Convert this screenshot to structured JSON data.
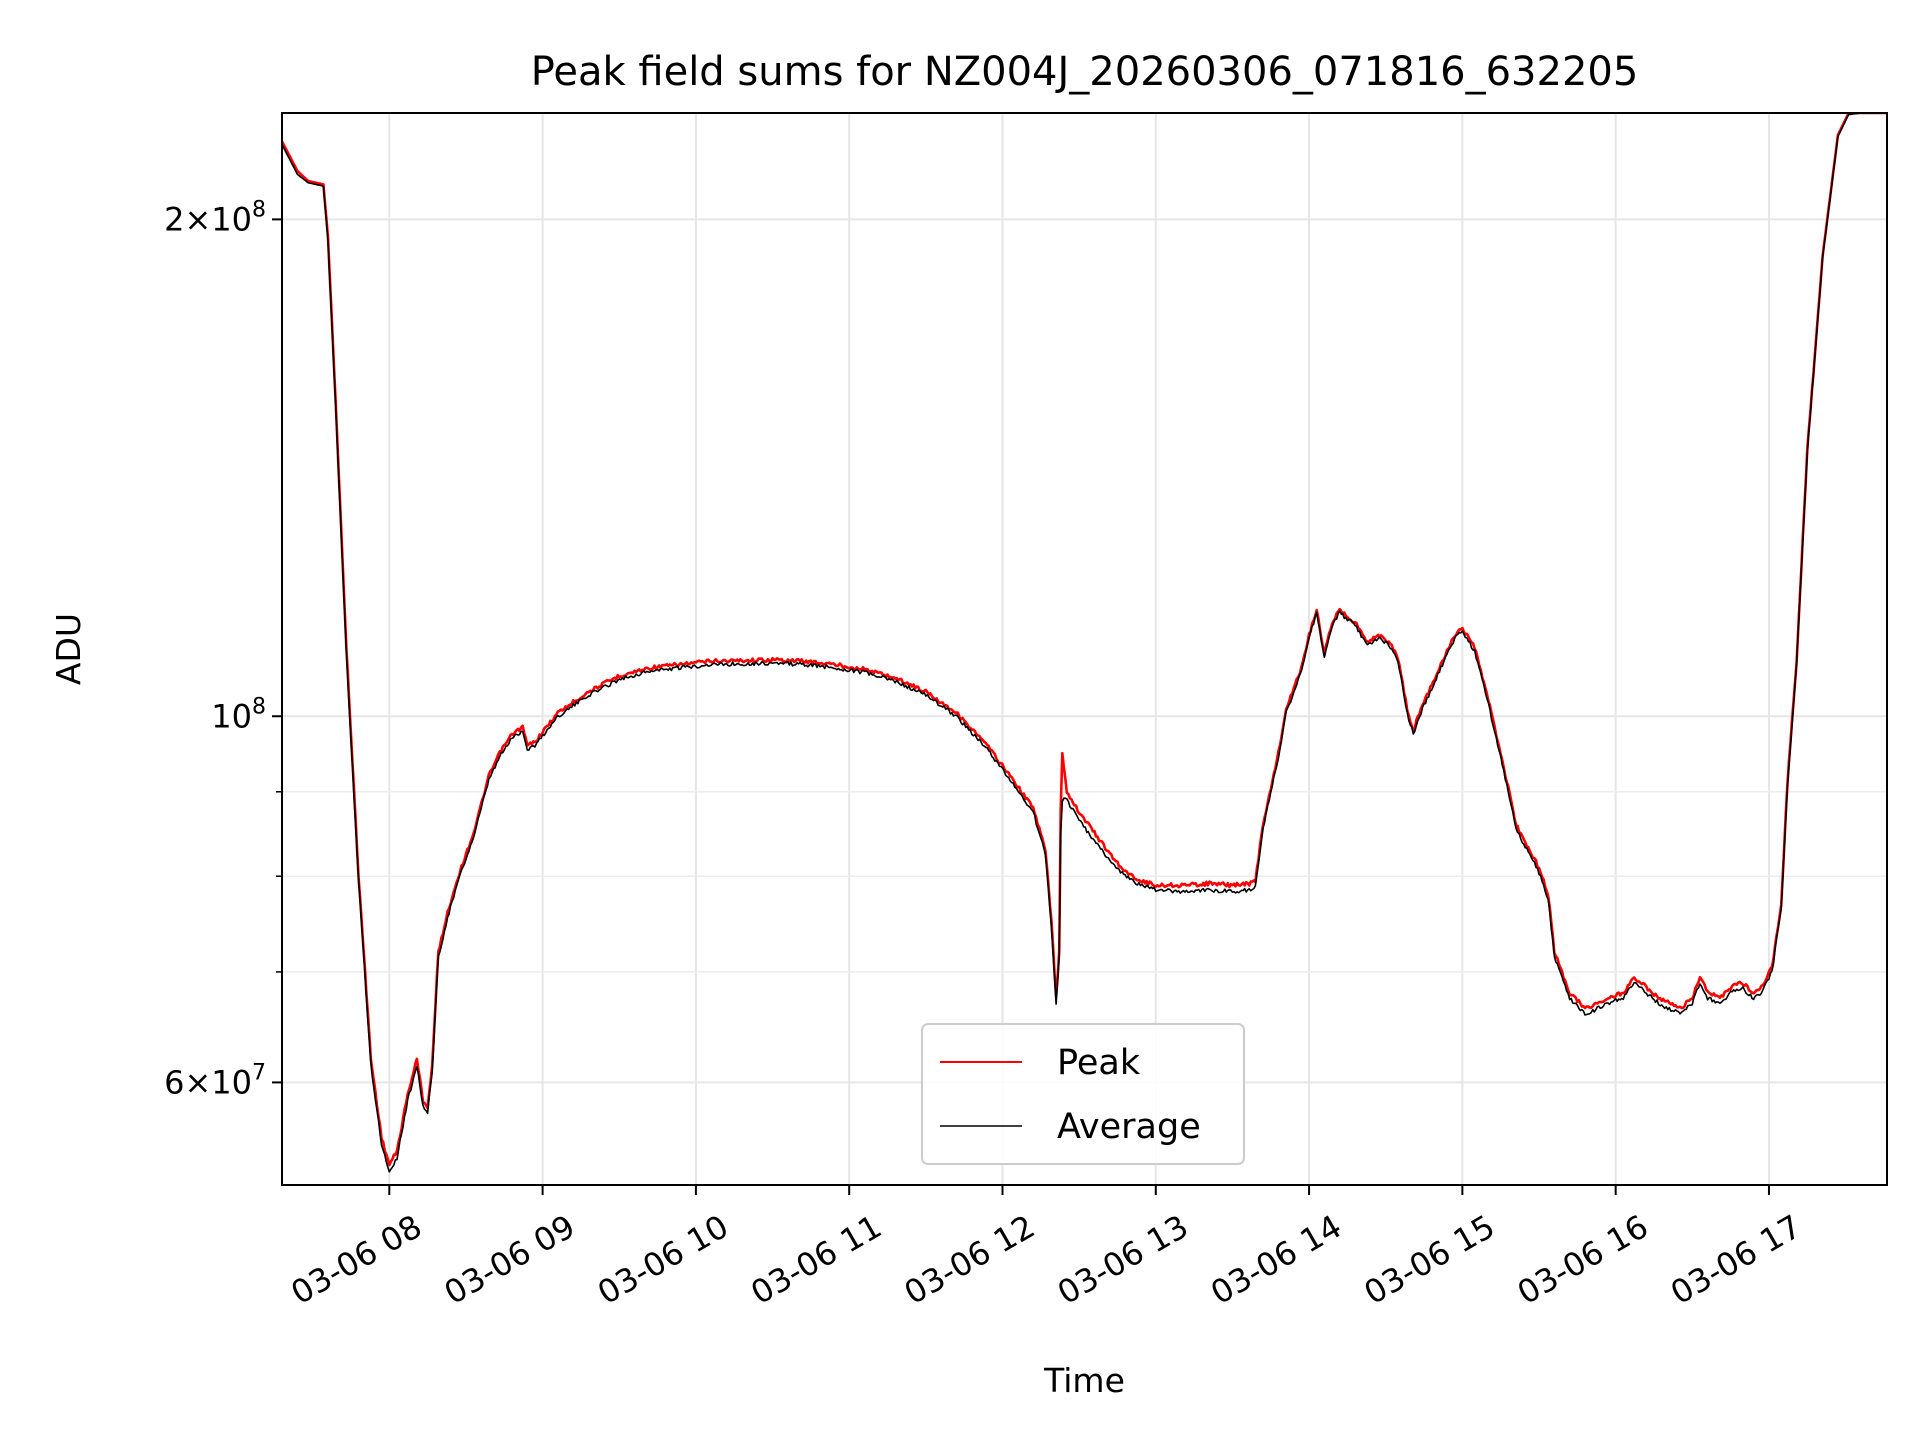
{
  "chart_data": {
    "type": "line",
    "title": "Peak field sums for NZ004J_20260306_071816_632205",
    "xlabel": "Time",
    "ylabel": "ADU",
    "x_unit": "hours (2026-03-06, local clock)",
    "xlim": [
      7.3,
      17.77
    ],
    "ylim": [
      52000000,
      232000000
    ],
    "yscale": "log",
    "grid": true,
    "legend": {
      "placement": "lower-center",
      "entries": [
        "Peak",
        "Average"
      ]
    },
    "x_ticks": [
      {
        "value": 8,
        "label": "03-06 08"
      },
      {
        "value": 9,
        "label": "03-06 09"
      },
      {
        "value": 10,
        "label": "03-06 10"
      },
      {
        "value": 11,
        "label": "03-06 11"
      },
      {
        "value": 12,
        "label": "03-06 12"
      },
      {
        "value": 13,
        "label": "03-06 13"
      },
      {
        "value": 14,
        "label": "03-06 14"
      },
      {
        "value": 15,
        "label": "03-06 15"
      },
      {
        "value": 16,
        "label": "03-06 16"
      },
      {
        "value": 17,
        "label": "03-06 17"
      }
    ],
    "y_ticks": [
      {
        "value": 60000000,
        "label": "6×10",
        "exp": "7"
      },
      {
        "value": 100000000,
        "label": "10",
        "exp": "8"
      },
      {
        "value": 200000000,
        "label": "2×10",
        "exp": "8"
      }
    ],
    "y_minor_ticks": [
      70000000,
      80000000,
      90000000
    ],
    "series": [
      {
        "name": "Peak",
        "color": "#ff0000",
        "x": [
          7.3,
          7.4,
          7.47,
          7.57,
          7.6,
          7.65,
          7.72,
          7.8,
          7.88,
          7.95,
          8.0,
          8.05,
          8.12,
          8.18,
          8.22,
          8.25,
          8.28,
          8.32,
          8.38,
          8.45,
          8.55,
          8.65,
          8.72,
          8.8,
          8.87,
          8.9,
          8.95,
          9.1,
          9.3,
          9.5,
          9.7,
          9.9,
          10.1,
          10.3,
          10.5,
          10.7,
          10.9,
          11.1,
          11.3,
          11.5,
          11.7,
          11.9,
          12.05,
          12.2,
          12.28,
          12.32,
          12.35,
          12.37,
          12.38,
          12.39,
          12.42,
          12.5,
          12.6,
          12.7,
          12.8,
          12.9,
          13.0,
          13.1,
          13.2,
          13.35,
          13.5,
          13.62,
          13.65,
          13.7,
          13.8,
          13.85,
          13.95,
          14.0,
          14.05,
          14.1,
          14.15,
          14.2,
          14.3,
          14.38,
          14.45,
          14.52,
          14.58,
          14.64,
          14.68,
          14.72,
          14.8,
          14.88,
          14.95,
          15.0,
          15.08,
          15.15,
          15.25,
          15.35,
          15.42,
          15.47,
          15.52,
          15.56,
          15.6,
          15.7,
          15.8,
          15.88,
          15.95,
          16.05,
          16.12,
          16.2,
          16.28,
          16.35,
          16.42,
          16.5,
          16.55,
          16.6,
          16.68,
          16.75,
          16.82,
          16.9,
          16.95,
          17.02,
          17.08,
          17.12,
          17.18,
          17.25,
          17.35,
          17.45,
          17.52,
          17.6,
          17.7,
          17.77
        ],
        "y": [
          223000000,
          214000000,
          211000000,
          210000000,
          195000000,
          155000000,
          110000000,
          80000000,
          62000000,
          55500000,
          53500000,
          54500000,
          59000000,
          62000000,
          58500000,
          58000000,
          61500000,
          72000000,
          76000000,
          80000000,
          85000000,
          92000000,
          95000000,
          97500000,
          98500000,
          96000000,
          96500000,
          100500000,
          103500000,
          105800000,
          107000000,
          107500000,
          108000000,
          108100000,
          108200000,
          108000000,
          107500000,
          106800000,
          105500000,
          103500000,
          100500000,
          96000000,
          92000000,
          88000000,
          83000000,
          75000000,
          67500000,
          72000000,
          88000000,
          95000000,
          90000000,
          87500000,
          85000000,
          82500000,
          80500000,
          79500000,
          79000000,
          79000000,
          79000000,
          79200000,
          79000000,
          79200000,
          79500000,
          86000000,
          95000000,
          101000000,
          107000000,
          112000000,
          116000000,
          109000000,
          114000000,
          116000000,
          114000000,
          111000000,
          112000000,
          111000000,
          108500000,
          101000000,
          98000000,
          100500000,
          104500000,
          108500000,
          112000000,
          113000000,
          110000000,
          104000000,
          95000000,
          86000000,
          83500000,
          82000000,
          80000000,
          78000000,
          72000000,
          68000000,
          66500000,
          67000000,
          67500000,
          68000000,
          69500000,
          68500000,
          67500000,
          67000000,
          66500000,
          67500000,
          69500000,
          68000000,
          67500000,
          68500000,
          69000000,
          68000000,
          68500000,
          70500000,
          77000000,
          91000000,
          108000000,
          145000000,
          190000000,
          225000000,
          232000000,
          232000000,
          232000000,
          232000000
        ]
      },
      {
        "name": "Average",
        "color": "#000000",
        "x": [
          7.3,
          7.4,
          7.47,
          7.57,
          7.6,
          7.65,
          7.72,
          7.8,
          7.88,
          7.95,
          8.0,
          8.05,
          8.12,
          8.18,
          8.22,
          8.25,
          8.28,
          8.32,
          8.38,
          8.45,
          8.55,
          8.65,
          8.72,
          8.8,
          8.87,
          8.9,
          8.95,
          9.1,
          9.3,
          9.5,
          9.7,
          9.9,
          10.1,
          10.3,
          10.5,
          10.7,
          10.9,
          11.1,
          11.3,
          11.5,
          11.7,
          11.9,
          12.05,
          12.2,
          12.28,
          12.32,
          12.35,
          12.37,
          12.38,
          12.39,
          12.42,
          12.5,
          12.6,
          12.7,
          12.8,
          12.9,
          13.0,
          13.1,
          13.2,
          13.35,
          13.5,
          13.62,
          13.65,
          13.7,
          13.8,
          13.85,
          13.95,
          14.0,
          14.05,
          14.1,
          14.15,
          14.2,
          14.3,
          14.38,
          14.45,
          14.52,
          14.58,
          14.64,
          14.68,
          14.72,
          14.8,
          14.88,
          14.95,
          15.0,
          15.08,
          15.15,
          15.25,
          15.35,
          15.42,
          15.47,
          15.52,
          15.56,
          15.6,
          15.7,
          15.8,
          15.88,
          15.95,
          16.05,
          16.12,
          16.2,
          16.28,
          16.35,
          16.42,
          16.5,
          16.55,
          16.6,
          16.68,
          16.75,
          16.82,
          16.9,
          16.95,
          17.02,
          17.08,
          17.12,
          17.18,
          17.25,
          17.35,
          17.45,
          17.52,
          17.6,
          17.7,
          17.77
        ],
        "y": [
          222000000,
          213000000,
          210500000,
          209500000,
          194000000,
          154000000,
          109000000,
          79500000,
          61500000,
          55000000,
          53000000,
          54000000,
          58500000,
          61500000,
          58000000,
          57500000,
          61000000,
          71500000,
          75500000,
          79500000,
          84500000,
          91500000,
          94500000,
          97000000,
          98000000,
          95500000,
          96000000,
          100000000,
          103000000,
          105300000,
          106500000,
          107000000,
          107500000,
          107600000,
          107700000,
          107500000,
          107000000,
          106300000,
          105000000,
          103000000,
          100000000,
          95500000,
          91500000,
          87500000,
          82500000,
          74500000,
          67000000,
          71500000,
          85000000,
          89000000,
          89000000,
          86500000,
          84000000,
          81800000,
          80000000,
          79000000,
          78500000,
          78400000,
          78300000,
          78500000,
          78300000,
          78500000,
          79000000,
          85500000,
          94500000,
          100500000,
          106500000,
          111500000,
          115500000,
          108500000,
          113500000,
          115500000,
          113500000,
          110500000,
          111500000,
          110500000,
          108000000,
          100500000,
          97500000,
          100000000,
          104000000,
          108000000,
          111500000,
          112500000,
          109500000,
          103500000,
          94500000,
          85500000,
          83000000,
          81500000,
          79500000,
          77500000,
          71500000,
          67500000,
          66000000,
          66500000,
          67000000,
          67500000,
          69000000,
          68000000,
          67000000,
          66500000,
          66000000,
          67000000,
          69000000,
          67500000,
          67000000,
          68000000,
          68500000,
          67500000,
          68000000,
          70000000,
          76500000,
          90500000,
          107500000,
          144500000,
          189500000,
          224500000,
          231500000,
          232000000,
          232000000,
          232000000
        ]
      }
    ]
  }
}
